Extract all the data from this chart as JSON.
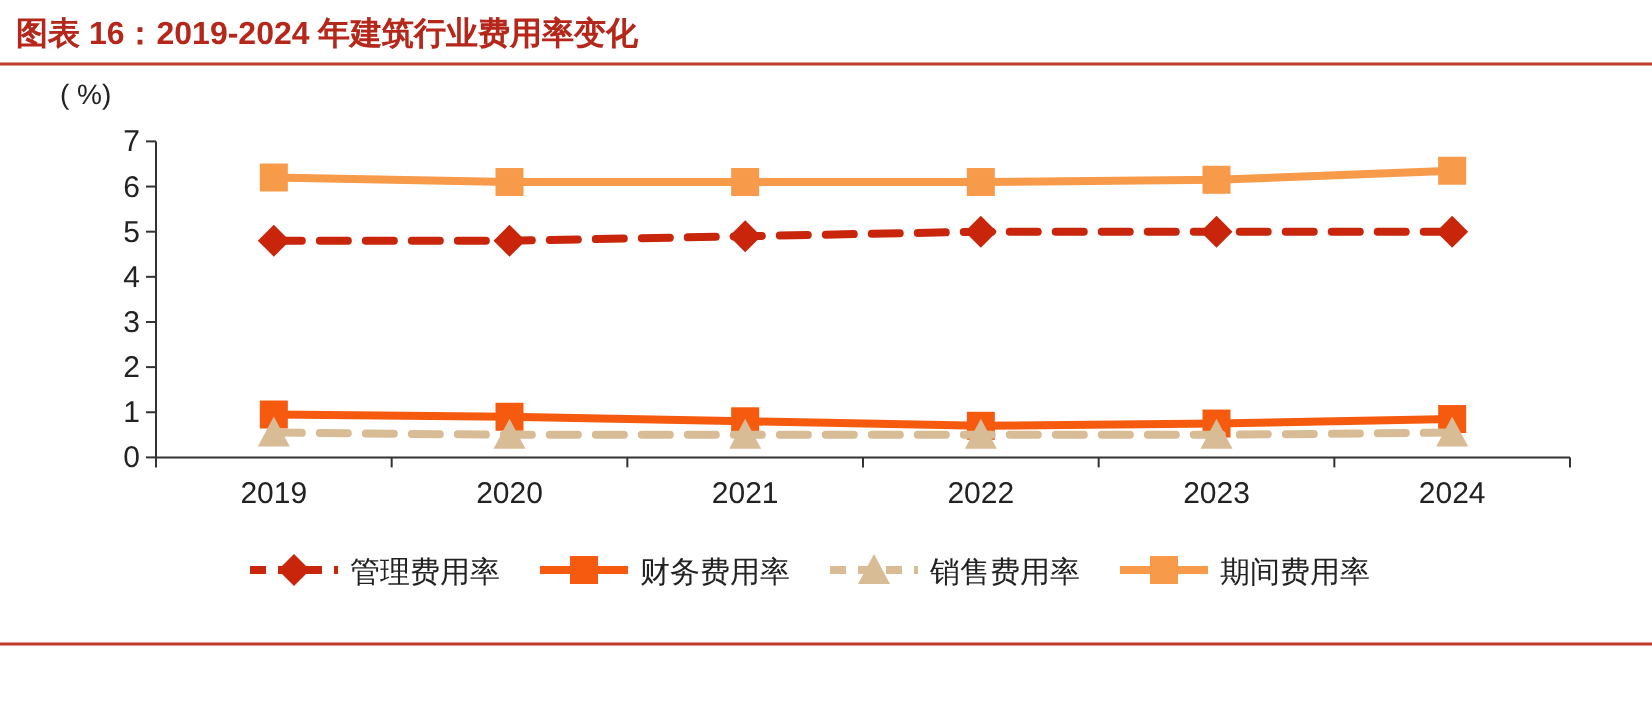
{
  "chart_data": {
    "type": "line",
    "title": "图表 16：2019-2024 年建筑行业费用率变化",
    "ylabel": "( %)",
    "categories": [
      "2019",
      "2020",
      "2021",
      "2022",
      "2023",
      "2024"
    ],
    "series": [
      {
        "name": "管理费用率",
        "color": "#c8250b",
        "marker": "diamond",
        "line_style": "dashed",
        "values": [
          4.8,
          4.8,
          4.9,
          5.0,
          5.0,
          5.0
        ]
      },
      {
        "name": "财务费用率",
        "color": "#f55a0f",
        "marker": "square",
        "line_style": "solid",
        "values": [
          0.95,
          0.9,
          0.8,
          0.7,
          0.75,
          0.85
        ]
      },
      {
        "name": "销售费用率",
        "color": "#d8bc95",
        "marker": "triangle",
        "line_style": "dashed",
        "values": [
          0.55,
          0.5,
          0.5,
          0.5,
          0.5,
          0.55
        ]
      },
      {
        "name": "期间费用率",
        "color": "#f79a4a",
        "marker": "square",
        "line_style": "solid",
        "values": [
          6.2,
          6.1,
          6.1,
          6.1,
          6.15,
          6.35
        ]
      }
    ],
    "ylim": [
      0,
      7
    ],
    "yticks": [
      0,
      1,
      2,
      3,
      4,
      5,
      6,
      7
    ],
    "grid": false,
    "legend": "bottom"
  }
}
